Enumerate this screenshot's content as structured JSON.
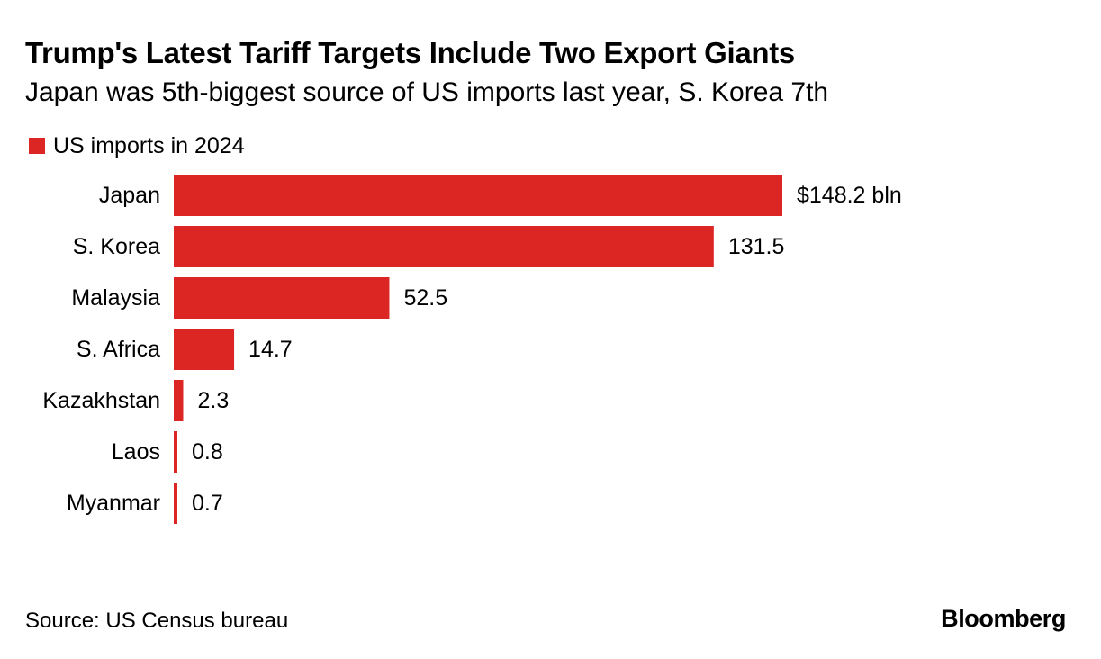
{
  "title": "Trump's Latest Tariff Targets Include Two Export Giants",
  "subtitle": "Japan was 5th-biggest source of US imports last year, S. Korea 7th",
  "source": "Source: US Census bureau",
  "brand": "Bloomberg",
  "colors": {
    "bar": "#dc2624",
    "text": "#000000"
  },
  "chart_data": {
    "type": "bar",
    "orientation": "horizontal",
    "legend": [
      {
        "label": "US imports in 2024",
        "color": "#dc2624"
      }
    ],
    "categories": [
      "Japan",
      "S. Korea",
      "Malaysia",
      "S. Africa",
      "Kazakhstan",
      "Laos",
      "Myanmar"
    ],
    "series": [
      {
        "name": "US imports in 2024",
        "values": [
          148.2,
          131.5,
          52.5,
          14.7,
          2.3,
          0.8,
          0.7
        ],
        "value_labels": [
          "$148.2 bln",
          "131.5",
          "52.5",
          "14.7",
          "2.3",
          "0.8",
          "0.7"
        ]
      }
    ],
    "xlim": [
      0,
      148.2
    ],
    "grid": false
  }
}
